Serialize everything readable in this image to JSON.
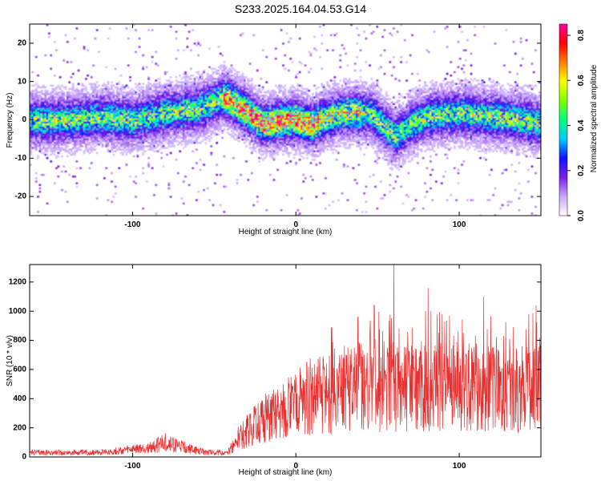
{
  "title": "S233.2025.164.04.53.G14",
  "chart_data": [
    {
      "type": "heatmap",
      "xlabel": "Height of straight line (km)",
      "ylabel": "Frequency (Hz)",
      "xlim": [
        -163,
        150
      ],
      "ylim": [
        -25,
        25
      ],
      "xticks": [
        "-100",
        "0",
        "100"
      ],
      "yticks": [
        "-20",
        "-10",
        "0",
        "10",
        "20"
      ],
      "grid": false,
      "colorbar": {
        "label": "Normalized spectral amplitude",
        "range": [
          0.0,
          0.85
        ],
        "ticks": [
          "0.0",
          "0.2",
          "0.4",
          "0.6",
          "0.8"
        ],
        "colors": [
          "#ffffff",
          "#c8a8ff",
          "#7a1fe0",
          "#1010ff",
          "#00ccff",
          "#00ff80",
          "#80ff00",
          "#ffff00",
          "#ff8000",
          "#ff0000",
          "#ff00a0"
        ]
      },
      "ridge": {
        "x": [
          -163,
          -140,
          -120,
          -100,
          -80,
          -60,
          -45,
          -40,
          -30,
          -20,
          -10,
          0,
          10,
          20,
          30,
          45,
          55,
          60,
          70,
          80,
          100,
          120,
          140,
          150
        ],
        "y": [
          0,
          0,
          1,
          0,
          2,
          3,
          6,
          5,
          2,
          -1,
          0,
          0,
          -1,
          1,
          2,
          2,
          -2,
          -4,
          -1,
          1,
          2,
          1,
          0,
          -1
        ]
      }
    },
    {
      "type": "line",
      "xlabel": "Height of straight line (km)",
      "ylabel": "SNR (10 * v/v)",
      "xlim": [
        -163,
        150
      ],
      "ylim": [
        0,
        1320
      ],
      "xticks": [
        "-100",
        "0",
        "100"
      ],
      "yticks": [
        "0",
        "200",
        "400",
        "600",
        "800",
        "1000",
        "1200"
      ],
      "color": "#e83030",
      "envelope": {
        "x": [
          -163,
          -120,
          -90,
          -80,
          -60,
          -42,
          -35,
          -20,
          -5,
          10,
          20,
          40,
          60,
          80,
          100,
          120,
          150
        ],
        "y": [
          30,
          30,
          60,
          100,
          40,
          25,
          130,
          260,
          330,
          420,
          420,
          480,
          480,
          480,
          480,
          470,
          480
        ]
      },
      "peaks": [
        {
          "x": 60,
          "y": 1320
        },
        {
          "x": 81,
          "y": 1160
        },
        {
          "x": 48,
          "y": 1040
        },
        {
          "x": 147,
          "y": 1040
        },
        {
          "x": 38,
          "y": 960
        },
        {
          "x": 115,
          "y": 1100
        }
      ]
    }
  ]
}
